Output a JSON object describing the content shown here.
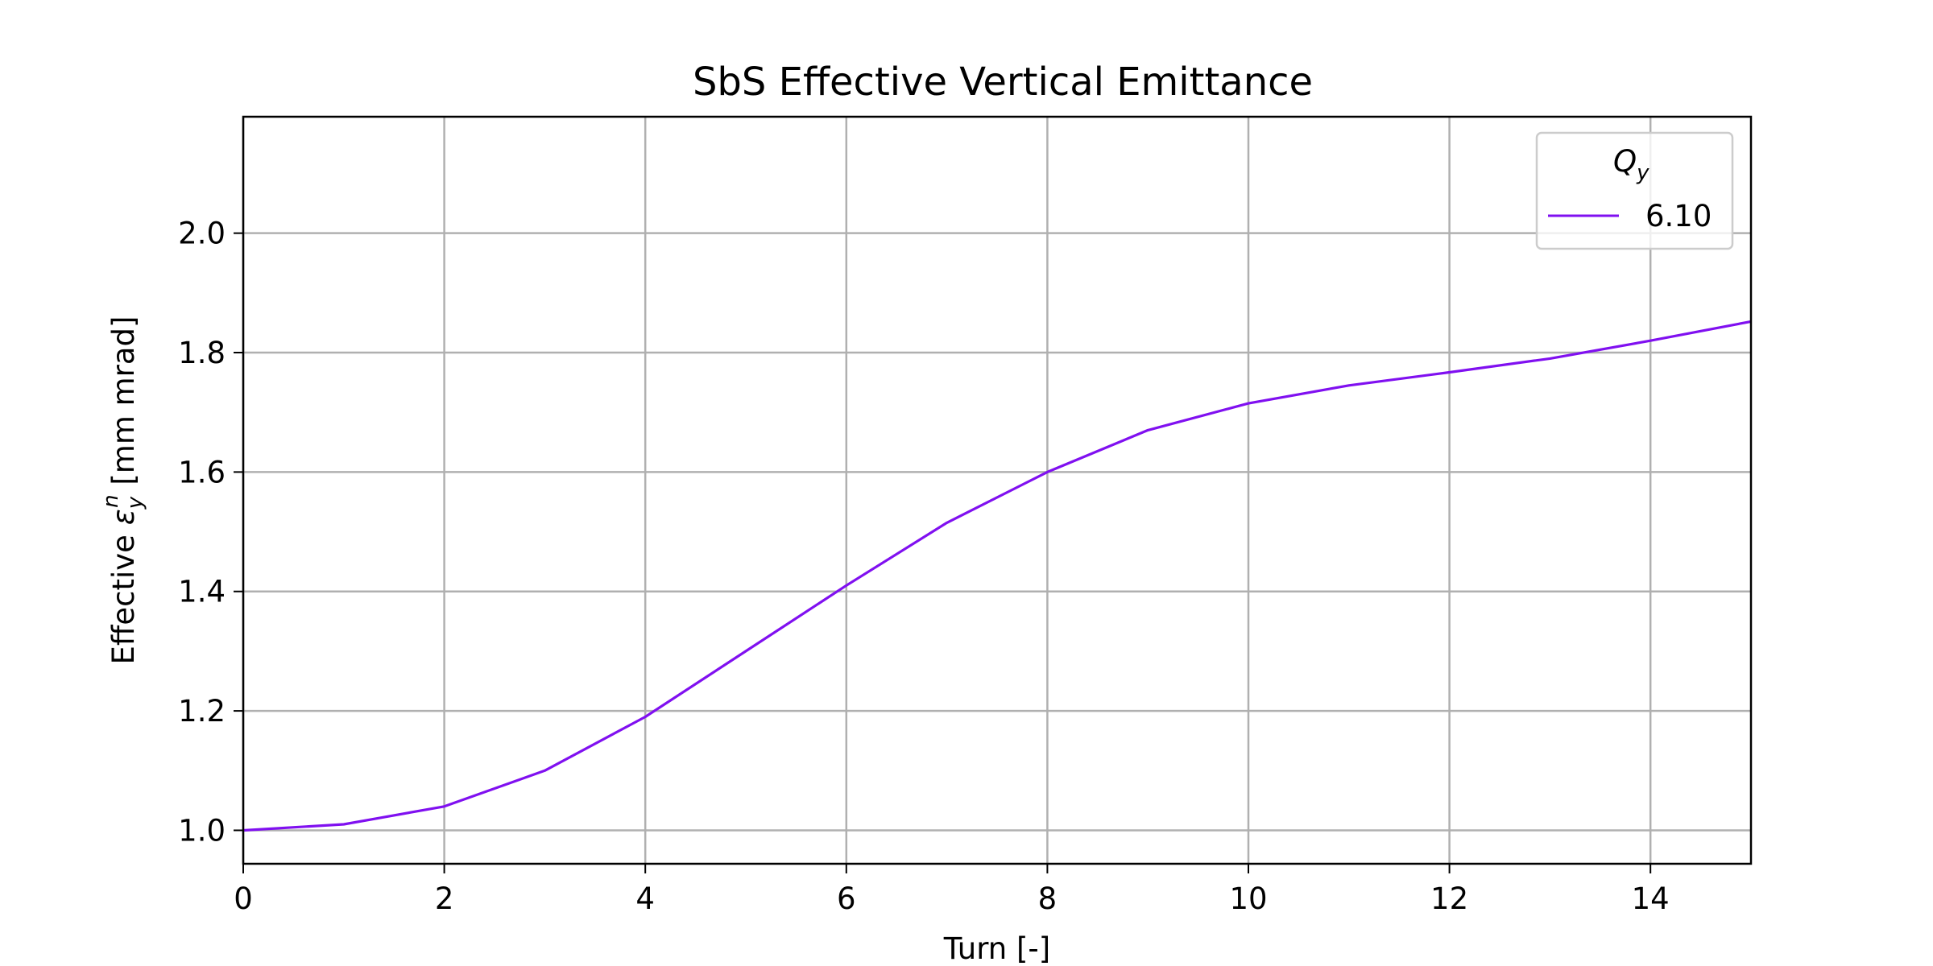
{
  "chart_data": {
    "type": "line",
    "title": "SbS Effective Vertical Emittance",
    "xlabel": "Turn [-]",
    "ylabel": {
      "prefix": "Effective ",
      "symbol": "ε",
      "subscript": "y",
      "superscript": "n",
      "suffix": " [mm mrad]"
    },
    "xlim": [
      0,
      15
    ],
    "ylim": [
      0.944,
      2.195
    ],
    "xticks": [
      0,
      2,
      4,
      6,
      8,
      10,
      12,
      14
    ],
    "yticks": [
      1.0,
      1.2,
      1.4,
      1.6,
      1.8,
      2.0
    ],
    "xtick_labels": [
      "0",
      "2",
      "4",
      "6",
      "8",
      "10",
      "12",
      "14"
    ],
    "ytick_labels": [
      "1.0",
      "1.2",
      "1.4",
      "1.6",
      "1.8",
      "2.0"
    ],
    "grid": true,
    "legend": {
      "placement": "top-right",
      "title": "Q",
      "title_subscript": "y"
    },
    "series": [
      {
        "name": "6.10",
        "color": "#8010f0",
        "x": [
          0,
          1,
          2,
          3,
          4,
          5,
          6,
          7,
          8,
          9,
          10,
          11,
          12,
          13,
          14,
          15
        ],
        "y": [
          1.0,
          1.01,
          1.04,
          1.1,
          1.19,
          1.3,
          1.41,
          1.515,
          1.6,
          1.67,
          1.715,
          1.745,
          1.767,
          1.79,
          1.82,
          1.852
        ]
      }
    ]
  }
}
